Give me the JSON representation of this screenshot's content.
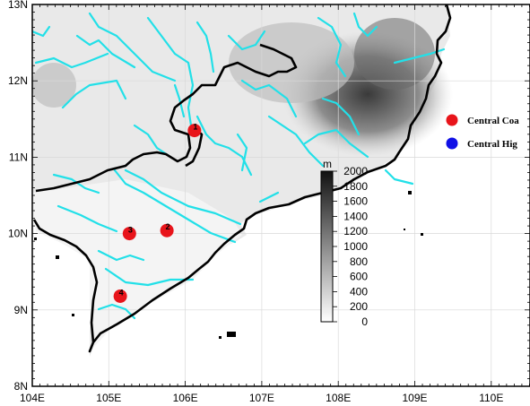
{
  "map": {
    "x_ticks": [
      "104E",
      "105E",
      "106E",
      "107E",
      "108E",
      "109E",
      "110E"
    ],
    "y_ticks": [
      "13N",
      "12N",
      "11N",
      "10N",
      "9N",
      "8N"
    ],
    "lon_range": [
      104,
      110.5
    ],
    "lat_range": [
      8,
      13
    ],
    "grid": true
  },
  "colorbar": {
    "unit": "m",
    "ticks": [
      "2000",
      "1800",
      "1600",
      "1400",
      "1200",
      "1000",
      "800",
      "600",
      "400",
      "200",
      "0"
    ]
  },
  "legend": {
    "items": [
      {
        "label": "Central Coa",
        "color": "#e8141a"
      },
      {
        "label": "Central Hig",
        "color": "#1010e6"
      }
    ]
  },
  "sites": [
    {
      "label": "1",
      "lon": 106.12,
      "lat": 11.35,
      "color": "#e8141a"
    },
    {
      "label": "2",
      "lon": 105.76,
      "lat": 10.04,
      "color": "#e8141a"
    },
    {
      "label": "3",
      "lon": 105.27,
      "lat": 10.0,
      "color": "#e8141a"
    },
    {
      "label": "4",
      "lon": 105.15,
      "lat": 9.18,
      "color": "#e8141a"
    }
  ],
  "colors": {
    "rivers": "#22e0e8",
    "borders": "#000000",
    "grid": "#d9d9d9"
  }
}
